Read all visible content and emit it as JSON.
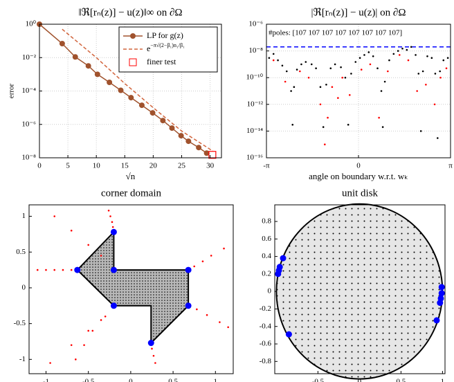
{
  "chart_data": [
    {
      "type": "line",
      "title": "‖ℜ[rₙ(z)] − u(z)‖∞ on ∂Ω",
      "xlabel": "√n",
      "ylabel": "error",
      "log_y": true,
      "grid": true,
      "legend": "upper right",
      "xlim": [
        0,
        32
      ],
      "xticks": [
        0,
        5,
        10,
        15,
        20,
        25,
        30
      ],
      "ylim": [
        1e-08,
        1
      ],
      "yticks": [
        {
          "value": 1,
          "label": "10⁰"
        },
        {
          "value": 0.01,
          "label": "10⁻²"
        },
        {
          "value": 0.0001,
          "label": "10⁻⁴"
        },
        {
          "value": 1e-06,
          "label": "10⁻⁶"
        },
        {
          "value": 1e-08,
          "label": "10⁻⁸"
        }
      ],
      "series": [
        {
          "name": "LP for g(z)",
          "color": "#a0522d",
          "marker": "circle",
          "x": [
            0,
            4.0,
            6.3,
            8.6,
            10.2,
            12.3,
            14.3,
            16.1,
            18.0,
            19.9,
            21.7,
            23.3,
            24.9,
            26.2,
            28.0,
            29.4
          ],
          "values": [
            1,
            0.069,
            0.011,
            0.0032,
            0.001,
            0.00033,
            0.00011,
            4e-05,
            1.4e-05,
            4.9e-06,
            1.7e-06,
            6e-07,
            2.1e-07,
            9.8e-08,
            4.1e-08,
            1.9e-08
          ]
        },
        {
          "name": "e",
          "name_sup": "−π√(2−β₁)n₁/β₁",
          "color": "#d2643c",
          "dash": true,
          "x": [
            4,
            10,
            15,
            20,
            25,
            30.5
          ],
          "values": [
            0.5,
            0.01,
            0.00028,
            1e-05,
            4e-07,
            2.5e-08
          ]
        },
        {
          "name": "finer test",
          "color": "#ff0000",
          "marker": "square",
          "x": [
            30.4
          ],
          "values": [
            1.5e-08
          ]
        }
      ]
    },
    {
      "type": "scatter",
      "title": "|ℜ[rₙ(z)] − u(z)| on ∂Ω",
      "xlabel": "angle on boundary w.r.t. wₖ",
      "log_y": true,
      "grid": true,
      "annotation": "#poles: [107 107 107 107 107 107 107 107]",
      "hline": 2e-08,
      "hline_color": "#0000ff",
      "xlim": [
        -3.14159,
        3.14159
      ],
      "xticks": [
        {
          "value": -3.14159,
          "label": "-π"
        },
        0,
        {
          "value": 3.14159,
          "label": "π"
        }
      ],
      "ylim": [
        1e-16,
        1e-06
      ],
      "yticks": [
        {
          "value": 1e-06,
          "label": "10⁻⁶"
        },
        {
          "value": 1e-08,
          "label": "10⁻⁸"
        },
        {
          "value": 1e-10,
          "label": "10⁻¹⁰"
        },
        {
          "value": 1e-12,
          "label": "10⁻¹²"
        },
        {
          "value": 1e-14,
          "label": "10⁻¹⁴"
        },
        {
          "value": 1e-16,
          "label": "10⁻¹⁶"
        }
      ],
      "series": [
        {
          "color": "#000000",
          "marker": "dot",
          "x": [
            -3.05,
            -2.9,
            -2.75,
            -2.6,
            -2.45,
            -2.3,
            -2.25,
            -2.2,
            -2.1,
            -1.95,
            -1.8,
            -1.6,
            -1.45,
            -1.3,
            -1.2,
            -1.1,
            -0.95,
            -0.8,
            -0.6,
            -0.45,
            -0.35,
            -0.25,
            -0.1,
            0.05,
            0.2,
            0.35,
            0.5,
            0.65,
            0.78,
            0.83,
            0.9,
            1.05,
            1.2,
            1.35,
            1.5,
            1.65,
            1.8,
            1.95,
            2.05,
            2.13,
            2.2,
            2.35,
            2.5,
            2.62,
            2.7,
            2.78,
            2.9,
            3.05
          ],
          "values": [
            3e-09,
            6e-09,
            2e-09,
            8e-10,
            3e-10,
            1e-11,
            3e-14,
            2e-11,
            4e-10,
            1e-09,
            1.5e-09,
            1e-09,
            5e-10,
            2e-11,
            2e-14,
            3e-11,
            5e-10,
            1e-09,
            6e-10,
            1e-10,
            3e-14,
            2e-10,
            1.5e-09,
            3e-09,
            5e-09,
            8e-09,
            4e-09,
            5e-10,
            1e-11,
            2e-14,
            5e-11,
            2e-09,
            6e-09,
            1e-08,
            1.5e-08,
            1.2e-08,
            2e-08,
            5e-09,
            2e-10,
            1e-14,
            3e-10,
            4e-09,
            3e-09,
            2e-10,
            3e-15,
            3e-10,
            2e-09,
            3e-09
          ]
        },
        {
          "color": "#ff0000",
          "marker": "dot",
          "x": [
            -2.9,
            -2.5,
            -2.0,
            -1.7,
            -1.3,
            -1.15,
            -1.05,
            -0.9,
            -0.7,
            -0.55,
            -0.3,
            0.1,
            0.4,
            0.7,
            1.0,
            1.4,
            1.7,
            2.0,
            2.3,
            2.6,
            2.8,
            3.0
          ],
          "values": [
            2e-09,
            5e-11,
            3e-10,
            1e-10,
            1e-12,
            1e-15,
            1e-13,
            2e-11,
            3e-12,
            1e-10,
            5e-12,
            4e-10,
            1e-09,
            1e-13,
            3e-10,
            5e-09,
            2e-09,
            1e-11,
            3e-11,
            1e-12,
            1e-10,
            5e-10
          ]
        }
      ]
    },
    {
      "type": "scatter",
      "title": "corner domain",
      "grid": false,
      "xlim": [
        -1.2,
        1.21
      ],
      "xticks": [
        -1,
        -0.5,
        0,
        0.5,
        1
      ],
      "ylim": [
        -1.2,
        1.16
      ],
      "yticks": [
        -1,
        -0.5,
        0,
        0.5,
        1
      ],
      "boundary": {
        "x": [
          -0.2,
          -0.63,
          -0.2,
          0.24,
          0.24,
          0.68,
          0.68,
          -0.2
        ],
        "y": [
          0.78,
          0.25,
          -0.25,
          -0.25,
          -0.77,
          -0.25,
          0.25,
          0.25
        ]
      },
      "series": [
        {
          "color": "#ff0000",
          "marker": "dot",
          "x": [
            -0.7,
            -0.8,
            -0.9,
            -1.0,
            -1.1,
            -0.21,
            -0.22,
            -0.24,
            -0.26,
            -0.35,
            -0.5,
            -0.7,
            -0.9,
            0.75,
            0.85,
            0.95,
            1.1,
            0.78,
            0.9,
            1.05,
            1.15,
            -0.35,
            -0.5,
            -0.7,
            -0.95,
            -0.3,
            -0.45,
            -0.55,
            -0.65,
            0.25,
            0.27,
            0.29
          ],
          "values": [
            0.25,
            0.25,
            0.25,
            0.25,
            0.25,
            0.85,
            0.92,
            1.0,
            1.08,
            0.45,
            0.6,
            0.8,
            1.0,
            0.3,
            0.37,
            0.45,
            0.55,
            -0.3,
            -0.38,
            -0.48,
            -0.55,
            -0.45,
            -0.6,
            -0.8,
            -1.05,
            -0.4,
            -0.6,
            -0.8,
            -1.0,
            -0.85,
            -0.95,
            -1.05
          ]
        },
        {
          "color": "#0000ff",
          "marker": "circle",
          "x": [
            -0.2,
            -0.63,
            -0.2,
            0.68,
            0.68,
            -0.2,
            0.24
          ],
          "values": [
            0.78,
            0.25,
            0.25,
            0.25,
            -0.25,
            -0.25,
            -0.77
          ]
        }
      ]
    },
    {
      "type": "scatter",
      "title": "unit disk",
      "grid": false,
      "radius": 1,
      "xlim": [
        -1.02,
        1.03
      ],
      "xticks": [
        -0.5,
        0,
        0.5,
        1
      ],
      "ylim": [
        -0.94,
        0.99
      ],
      "yticks": [
        -0.8,
        -0.6,
        -0.4,
        -0.2,
        0,
        0.2,
        0.4,
        0.6,
        0.8
      ],
      "series": [
        {
          "color": "#0000ff",
          "marker": "circle",
          "x": [
            -0.92,
            -0.96,
            -0.97,
            -0.98,
            -0.85,
            0.99,
            0.99,
            0.98,
            0.97,
            0.93
          ],
          "values": [
            0.38,
            0.28,
            0.24,
            0.2,
            -0.49,
            0.05,
            -0.02,
            -0.08,
            -0.13,
            -0.33
          ]
        }
      ]
    }
  ]
}
